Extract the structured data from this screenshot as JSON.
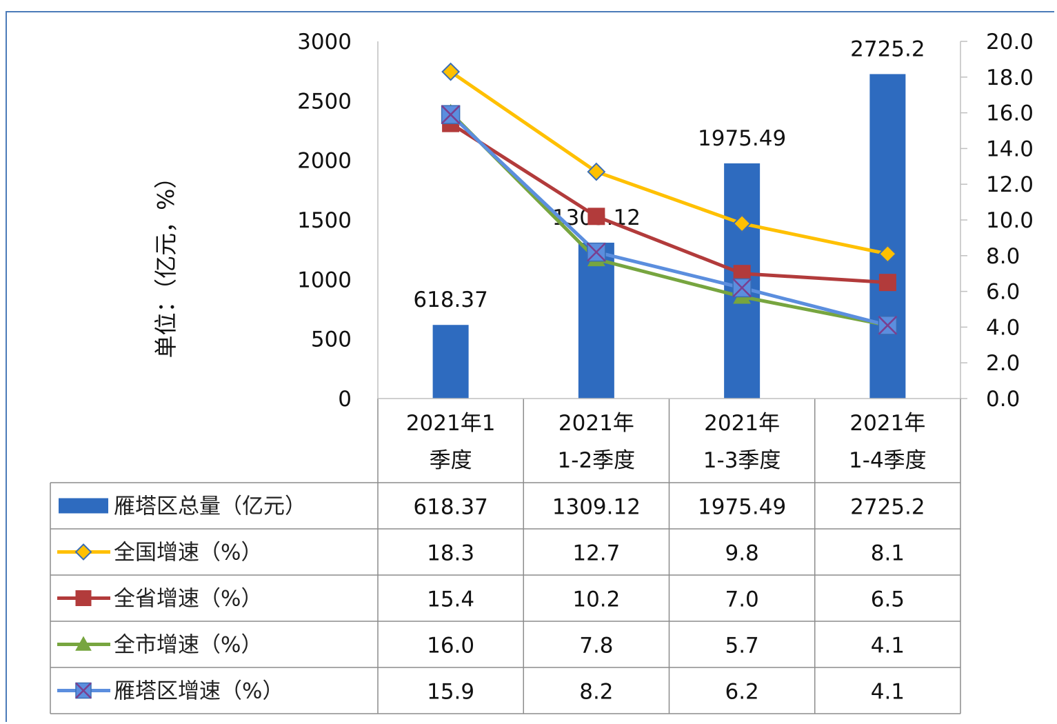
{
  "chart_data": {
    "type": "bar",
    "title": "",
    "ylabel": "单位：（亿元，%）",
    "categories": [
      [
        "2021年1",
        "季度"
      ],
      [
        "2021年",
        "1-2季度"
      ],
      [
        "2021年",
        "1-3季度"
      ],
      [
        "2021年",
        "1-4季度"
      ]
    ],
    "y_left": {
      "min": 0,
      "max": 3000,
      "ticks": [
        "0",
        "500",
        "1000",
        "1500",
        "2000",
        "2500",
        "3000"
      ]
    },
    "y_right": {
      "min": 0,
      "max": 20,
      "ticks": [
        "0.0",
        "2.0",
        "4.0",
        "6.0",
        "8.0",
        "10.0",
        "12.0",
        "14.0",
        "16.0",
        "18.0",
        "20.0"
      ]
    },
    "bar": {
      "name": "雁塔区总量（亿元）",
      "color": "#2e6bbf",
      "values": [
        618.37,
        1309.12,
        1975.49,
        2725.2
      ],
      "labels": [
        "618.37",
        "1309.12",
        "1975.49",
        "2725.2"
      ]
    },
    "lines": [
      {
        "name": "全国增速（%）",
        "color": "#ffc000",
        "marker": "diamond",
        "values": [
          18.3,
          12.7,
          9.8,
          8.1
        ],
        "labels": [
          "18.3",
          "12.7",
          "9.8",
          "8.1"
        ]
      },
      {
        "name": "全省增速（%）",
        "color": "#b23b3b",
        "marker": "square",
        "values": [
          15.4,
          10.2,
          7.0,
          6.5
        ],
        "labels": [
          "15.4",
          "10.2",
          "7.0",
          "6.5"
        ]
      },
      {
        "name": "全市增速（%）",
        "color": "#77a53f",
        "marker": "triangle",
        "values": [
          16.0,
          7.8,
          5.7,
          4.1
        ],
        "labels": [
          "16.0",
          "7.8",
          "5.7",
          "4.1"
        ]
      },
      {
        "name": "雁塔区增速（%）",
        "color": "#5b8ede",
        "marker": "x",
        "values": [
          15.9,
          8.2,
          6.2,
          4.1
        ],
        "labels": [
          "15.9",
          "8.2",
          "6.2",
          "4.1"
        ]
      }
    ]
  }
}
